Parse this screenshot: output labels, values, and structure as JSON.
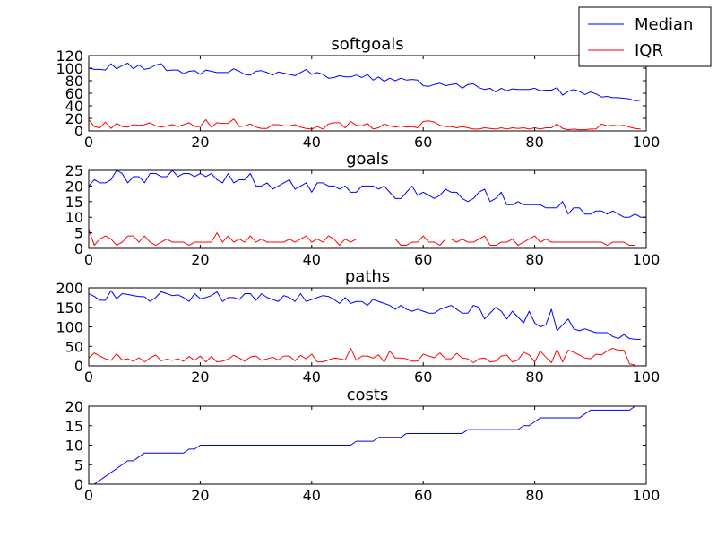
{
  "legend": {
    "placement": "top-right",
    "entries": [
      {
        "label": "Median",
        "color": "#0000ff"
      },
      {
        "label": "IQR",
        "color": "#ff0000"
      }
    ]
  },
  "chart_data": [
    {
      "type": "line",
      "title": "softgoals",
      "xlim": [
        0,
        100
      ],
      "ylim": [
        0,
        120
      ],
      "xticks": [
        0,
        20,
        40,
        60,
        80,
        100
      ],
      "yticks": [
        0,
        20,
        40,
        60,
        80,
        100,
        120
      ],
      "series": [
        {
          "name": "Median",
          "color": "#0000ff",
          "x_start": 0,
          "values": [
            100,
            98,
            98,
            97,
            107,
            99,
            104,
            108,
            99,
            105,
            98,
            100,
            105,
            107,
            96,
            97,
            97,
            91,
            95,
            96,
            90,
            97,
            95,
            93,
            93,
            93,
            99,
            95,
            90,
            89,
            95,
            96,
            93,
            89,
            94,
            92,
            90,
            88,
            93,
            98,
            90,
            93,
            90,
            84,
            85,
            88,
            86,
            86,
            89,
            85,
            90,
            81,
            86,
            79,
            84,
            80,
            84,
            81,
            82,
            81,
            72,
            71,
            74,
            76,
            72,
            74,
            75,
            68,
            74,
            75,
            69,
            66,
            68,
            62,
            68,
            64,
            67,
            66,
            66,
            66,
            68,
            64,
            65,
            65,
            69,
            57,
            63,
            66,
            63,
            58,
            62,
            59,
            54,
            55,
            53,
            53,
            52,
            51,
            48,
            49
          ]
        },
        {
          "name": "IQR",
          "color": "#ff0000",
          "x_start": 0,
          "values": [
            18,
            7,
            5,
            14,
            4,
            12,
            7,
            6,
            10,
            9,
            10,
            13,
            8,
            6,
            8,
            10,
            7,
            10,
            13,
            7,
            7,
            18,
            6,
            13,
            12,
            12,
            19,
            7,
            8,
            11,
            6,
            4,
            4,
            10,
            10,
            8,
            8,
            10,
            6,
            4,
            3,
            7,
            3,
            11,
            13,
            13,
            5,
            15,
            9,
            8,
            12,
            3,
            5,
            11,
            8,
            6,
            8,
            6,
            7,
            5,
            15,
            16,
            14,
            9,
            7,
            7,
            5,
            7,
            5,
            3,
            3,
            5,
            4,
            3,
            5,
            3,
            5,
            4,
            5,
            3,
            5,
            3,
            5,
            5,
            11,
            4,
            2,
            3,
            2,
            2,
            3,
            3,
            11,
            8,
            9,
            8,
            9,
            6,
            4,
            3
          ]
        }
      ]
    },
    {
      "type": "line",
      "title": "goals",
      "xlim": [
        0,
        100
      ],
      "ylim": [
        0,
        25
      ],
      "xticks": [
        0,
        20,
        40,
        60,
        80,
        100
      ],
      "yticks": [
        0,
        5,
        10,
        15,
        20,
        25
      ],
      "series": [
        {
          "name": "Median",
          "color": "#0000ff",
          "x_start": 0,
          "values": [
            20,
            22,
            21,
            21,
            22,
            25,
            24,
            21,
            23,
            23,
            21,
            24,
            24,
            23,
            23,
            25,
            23,
            24,
            24,
            23,
            24,
            23,
            24,
            22,
            21,
            24,
            21,
            22,
            22,
            24,
            20,
            20,
            21,
            19,
            20,
            21,
            22,
            19,
            20,
            21,
            18,
            21,
            21,
            20,
            20,
            19,
            20,
            18,
            18,
            20,
            20,
            20,
            19,
            20,
            18,
            16,
            16,
            18,
            20,
            17,
            18,
            17,
            16,
            17,
            19,
            18,
            18,
            16,
            15,
            16,
            18,
            19,
            15,
            16,
            18,
            14,
            14,
            15,
            14,
            14,
            14,
            14,
            13,
            13,
            13,
            15,
            11,
            13,
            13,
            11,
            11,
            12,
            12,
            11,
            12,
            11,
            10,
            10,
            11,
            10,
            10
          ]
        },
        {
          "name": "IQR",
          "color": "#ff0000",
          "x_start": 0,
          "values": [
            6,
            1,
            3,
            4,
            3,
            1,
            2,
            4,
            4,
            2,
            4,
            2,
            1,
            2,
            3,
            2,
            2,
            2,
            1,
            2,
            2,
            2,
            2,
            5,
            2,
            4,
            2,
            3,
            2,
            4,
            2,
            3,
            2,
            2,
            2,
            2,
            3,
            2,
            3,
            4,
            2,
            3,
            2,
            4,
            3,
            1,
            3,
            2,
            3,
            3,
            3,
            3,
            3,
            3,
            3,
            3,
            1,
            1,
            2,
            2,
            4,
            2,
            2,
            1,
            3,
            3,
            2,
            3,
            2,
            2,
            3,
            4,
            1,
            1,
            2,
            2,
            3,
            1,
            2,
            3,
            4,
            2,
            3,
            2,
            2,
            2,
            2,
            2,
            2,
            2,
            2,
            2,
            2,
            1,
            2,
            2,
            2,
            1,
            1
          ]
        }
      ]
    },
    {
      "type": "line",
      "title": "paths",
      "xlim": [
        0,
        100
      ],
      "ylim": [
        0,
        200
      ],
      "xticks": [
        0,
        20,
        40,
        60,
        80,
        100
      ],
      "yticks": [
        0,
        50,
        100,
        150,
        200
      ],
      "series": [
        {
          "name": "Median",
          "color": "#0000ff",
          "x_start": 0,
          "values": [
            185,
            178,
            168,
            168,
            193,
            172,
            185,
            183,
            180,
            178,
            177,
            165,
            175,
            190,
            185,
            180,
            182,
            175,
            165,
            185,
            172,
            175,
            180,
            190,
            165,
            175,
            175,
            170,
            185,
            185,
            168,
            185,
            175,
            170,
            165,
            180,
            175,
            165,
            185,
            165,
            170,
            175,
            180,
            178,
            170,
            160,
            175,
            160,
            165,
            165,
            155,
            170,
            165,
            160,
            155,
            145,
            155,
            145,
            140,
            145,
            140,
            135,
            135,
            145,
            150,
            155,
            145,
            135,
            135,
            155,
            150,
            120,
            135,
            150,
            140,
            120,
            140,
            125,
            110,
            140,
            110,
            100,
            105,
            145,
            90,
            105,
            120,
            95,
            90,
            95,
            90,
            85,
            85,
            85,
            75,
            70,
            80,
            70,
            68,
            68
          ]
        },
        {
          "name": "IQR",
          "color": "#ff0000",
          "x_start": 0,
          "values": [
            20,
            33,
            25,
            18,
            14,
            31,
            15,
            18,
            12,
            21,
            10,
            20,
            28,
            13,
            17,
            14,
            18,
            12,
            24,
            14,
            25,
            10,
            24,
            10,
            12,
            17,
            27,
            20,
            12,
            23,
            25,
            14,
            18,
            22,
            15,
            25,
            25,
            13,
            27,
            18,
            30,
            10,
            10,
            15,
            20,
            18,
            15,
            45,
            14,
            25,
            25,
            20,
            28,
            10,
            38,
            20,
            20,
            18,
            12,
            12,
            30,
            25,
            21,
            33,
            18,
            18,
            32,
            20,
            18,
            8,
            18,
            20,
            10,
            12,
            25,
            28,
            10,
            15,
            35,
            28,
            10,
            38,
            22,
            8,
            42,
            10,
            40,
            35,
            28,
            20,
            18,
            30,
            28,
            38,
            45,
            40,
            40,
            5,
            2
          ]
        }
      ]
    },
    {
      "type": "line",
      "title": "costs",
      "xlim": [
        0,
        100
      ],
      "ylim": [
        0,
        20
      ],
      "xticks": [
        0,
        20,
        40,
        60,
        80,
        100
      ],
      "yticks": [
        0,
        5,
        10,
        15,
        20
      ],
      "series": [
        {
          "name": "Median",
          "color": "#0000ff",
          "x_start": 1,
          "values": [
            0,
            1,
            2,
            3,
            4,
            5,
            6,
            6,
            7,
            8,
            8,
            8,
            8,
            8,
            8,
            8,
            8,
            9,
            9,
            10,
            10,
            10,
            10,
            10,
            10,
            10,
            10,
            10,
            10,
            10,
            10,
            10,
            10,
            10,
            10,
            10,
            10,
            10,
            10,
            10,
            10,
            10,
            10,
            10,
            10,
            10,
            10,
            11,
            11,
            11,
            11,
            12,
            12,
            12,
            12,
            12,
            13,
            13,
            13,
            13,
            13,
            13,
            13,
            13,
            13,
            13,
            13,
            14,
            14,
            14,
            14,
            14,
            14,
            14,
            14,
            14,
            14,
            15,
            15,
            16,
            17,
            17,
            17,
            17,
            17,
            17,
            17,
            17,
            18,
            19,
            19,
            19,
            19,
            19,
            19,
            19,
            19,
            20
          ]
        }
      ]
    }
  ]
}
